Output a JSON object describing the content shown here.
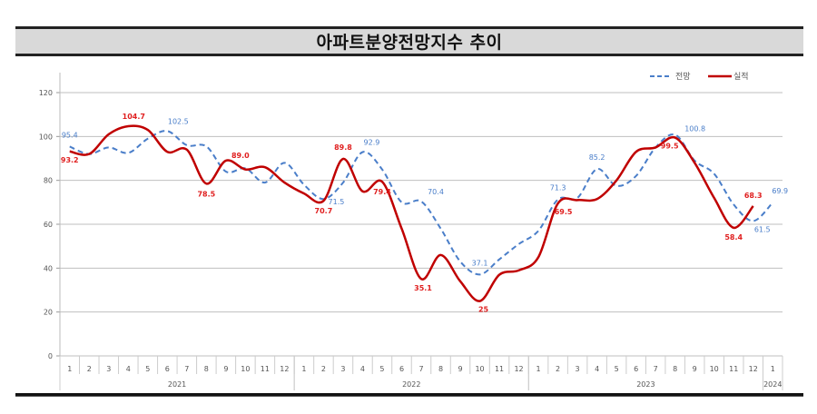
{
  "header": {
    "title": "아파트분양전망지수 추이"
  },
  "legend": {
    "forecast_label": "전망",
    "actual_label": "실적"
  },
  "colors": {
    "forecast": "#4a7ec9",
    "actual": "#c00000",
    "grid": "#bfbfbf",
    "title_bg": "#d9d9d9"
  },
  "chart_data": {
    "type": "line",
    "title": "아파트분양전망지수 추이",
    "xlabel": "",
    "ylabel": "",
    "ylim": [
      0,
      120
    ],
    "yticks": [
      0,
      20,
      40,
      60,
      80,
      100,
      120
    ],
    "grid": true,
    "legend_position": "top-right",
    "x_years": [
      {
        "label": "2021",
        "months": 12
      },
      {
        "label": "2022",
        "months": 12
      },
      {
        "label": "2023",
        "months": 12
      },
      {
        "label": "2024",
        "months": 1
      }
    ],
    "x": [
      "2021-01",
      "2021-02",
      "2021-03",
      "2021-04",
      "2021-05",
      "2021-06",
      "2021-07",
      "2021-08",
      "2021-09",
      "2021-10",
      "2021-11",
      "2021-12",
      "2022-01",
      "2022-02",
      "2022-03",
      "2022-04",
      "2022-05",
      "2022-06",
      "2022-07",
      "2022-08",
      "2022-09",
      "2022-10",
      "2022-11",
      "2022-12",
      "2023-01",
      "2023-02",
      "2023-03",
      "2023-04",
      "2023-05",
      "2023-06",
      "2023-07",
      "2023-08",
      "2023-09",
      "2023-10",
      "2023-11",
      "2023-12",
      "2024-01"
    ],
    "month_labels": [
      "1",
      "2",
      "3",
      "4",
      "5",
      "6",
      "7",
      "8",
      "9",
      "10",
      "11",
      "12",
      "1",
      "2",
      "3",
      "4",
      "5",
      "6",
      "7",
      "8",
      "9",
      "10",
      "11",
      "12",
      "1",
      "2",
      "3",
      "4",
      "5",
      "6",
      "7",
      "8",
      "9",
      "10",
      "11",
      "12",
      "1"
    ],
    "series": [
      {
        "name": "전망",
        "style": "dashed",
        "values": [
          95.4,
          92,
          95,
          92.5,
          99,
          102.5,
          96,
          95.5,
          84,
          85.5,
          79,
          88,
          78,
          71.5,
          79,
          92.9,
          85,
          70,
          70.4,
          58,
          43,
          37.1,
          44,
          51,
          57,
          71.3,
          72,
          85.2,
          77.5,
          82,
          95,
          100.8,
          89,
          83,
          69,
          61.5,
          69.9
        ]
      },
      {
        "name": "실적",
        "style": "solid",
        "values": [
          93.2,
          92,
          101,
          104.7,
          103,
          93,
          94,
          78.5,
          89.0,
          85,
          86,
          79,
          74,
          70.7,
          89.8,
          75,
          79.4,
          58,
          35.1,
          46,
          34,
          25,
          37,
          39,
          45,
          69.5,
          71,
          71.5,
          80,
          93,
          95,
          99.5,
          88,
          72,
          58.4,
          68.3,
          null
        ]
      }
    ],
    "annotations": [
      {
        "series": "전망",
        "index": 0,
        "text": "95.4"
      },
      {
        "series": "전망",
        "index": 5,
        "text": "102.5"
      },
      {
        "series": "전망",
        "index": 13,
        "text": "71.5"
      },
      {
        "series": "전망",
        "index": 15,
        "text": "92.9"
      },
      {
        "series": "전망",
        "index": 18,
        "text": "70.4"
      },
      {
        "series": "전망",
        "index": 21,
        "text": "37.1"
      },
      {
        "series": "전망",
        "index": 25,
        "text": "71.3"
      },
      {
        "series": "전망",
        "index": 27,
        "text": "85.2"
      },
      {
        "series": "전망",
        "index": 31,
        "text": "100.8"
      },
      {
        "series": "전망",
        "index": 35,
        "text": "61.5"
      },
      {
        "series": "전망",
        "index": 36,
        "text": "69.9"
      },
      {
        "series": "실적",
        "index": 0,
        "text": "93.2"
      },
      {
        "series": "실적",
        "index": 3,
        "text": "104.7"
      },
      {
        "series": "실적",
        "index": 7,
        "text": "78.5"
      },
      {
        "series": "실적",
        "index": 8,
        "text": "89.0"
      },
      {
        "series": "실적",
        "index": 13,
        "text": "70.7"
      },
      {
        "series": "실적",
        "index": 14,
        "text": "89.8"
      },
      {
        "series": "실적",
        "index": 16,
        "text": "79.4"
      },
      {
        "series": "실적",
        "index": 18,
        "text": "35.1"
      },
      {
        "series": "실적",
        "index": 21,
        "text": "25"
      },
      {
        "series": "실적",
        "index": 25,
        "text": "69.5"
      },
      {
        "series": "실적",
        "index": 31,
        "text": "99.5"
      },
      {
        "series": "실적",
        "index": 34,
        "text": "58.4"
      },
      {
        "series": "실적",
        "index": 35,
        "text": "68.3"
      }
    ]
  }
}
